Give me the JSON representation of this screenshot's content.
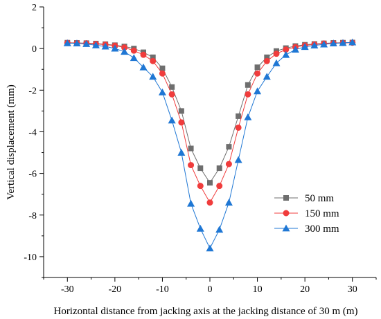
{
  "chart_data": {
    "type": "line",
    "title": "",
    "xlabel": "Horizontal distance from jacking axis at the jacking distance of 30 m (m)",
    "ylabel": "Vertical displacement (mm)",
    "xlim": [
      -35,
      35
    ],
    "ylim": [
      -11,
      2
    ],
    "xticks": [
      -30,
      -20,
      -10,
      0,
      10,
      20,
      30
    ],
    "xtick_labels": [
      "-30",
      "-20",
      "-10",
      "0",
      "10",
      "20",
      "30"
    ],
    "yticks": [
      2,
      0,
      -2,
      -4,
      -6,
      -8,
      -10
    ],
    "ytick_labels": [
      "2",
      "0",
      "-2",
      "-4",
      "-6",
      "-8",
      "-10"
    ],
    "grid": false,
    "legend_position": "bottom-right",
    "x": [
      -30,
      -28,
      -26,
      -24,
      -22,
      -20,
      -18,
      -16,
      -14,
      -12,
      -10,
      -8,
      -6,
      -4,
      -2,
      0,
      2,
      4,
      6,
      8,
      10,
      12,
      14,
      16,
      18,
      20,
      22,
      24,
      26,
      28,
      30
    ],
    "series": [
      {
        "name": "50 mm",
        "color": "#6e6e6e",
        "marker": "square",
        "values": [
          0.28,
          0.27,
          0.26,
          0.24,
          0.21,
          0.16,
          0.1,
          0.0,
          -0.18,
          -0.42,
          -0.95,
          -1.85,
          -3.0,
          -4.8,
          -5.75,
          -6.45,
          -5.75,
          -4.72,
          -3.25,
          -1.75,
          -0.9,
          -0.42,
          -0.12,
          0.02,
          0.12,
          0.18,
          0.22,
          0.25,
          0.27,
          0.28,
          0.29
        ]
      },
      {
        "name": "150 mm",
        "color": "#f03c3c",
        "marker": "circle",
        "values": [
          0.27,
          0.26,
          0.25,
          0.22,
          0.19,
          0.14,
          0.05,
          -0.1,
          -0.3,
          -0.6,
          -1.2,
          -2.2,
          -3.55,
          -5.6,
          -6.6,
          -7.4,
          -6.6,
          -5.55,
          -3.8,
          -2.2,
          -1.2,
          -0.6,
          -0.25,
          -0.05,
          0.07,
          0.15,
          0.2,
          0.24,
          0.26,
          0.27,
          0.28
        ]
      },
      {
        "name": "300 mm",
        "color": "#1f77d4",
        "marker": "triangle",
        "values": [
          0.26,
          0.25,
          0.22,
          0.16,
          0.1,
          0.0,
          -0.15,
          -0.45,
          -0.9,
          -1.35,
          -2.1,
          -3.45,
          -5.0,
          -7.45,
          -8.65,
          -9.6,
          -8.7,
          -7.4,
          -5.35,
          -3.3,
          -2.05,
          -1.35,
          -0.7,
          -0.3,
          -0.05,
          0.08,
          0.15,
          0.2,
          0.25,
          0.27,
          0.3
        ]
      }
    ]
  }
}
